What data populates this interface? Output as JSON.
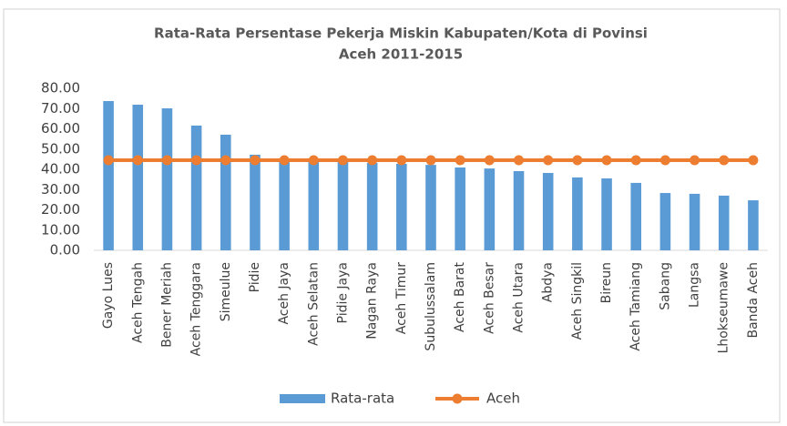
{
  "chart_data": {
    "type": "bar",
    "title": [
      "Rata-Rata Persentase Pekerja Miskin Kabupaten/Kota di Povinsi",
      "Aceh 2011-2015"
    ],
    "categories": [
      "Gayo Lues",
      "Aceh Tengah",
      "Bener Meriah",
      "Aceh Tenggara",
      "Simeulue",
      "Pidie",
      "Aceh Jaya",
      "Aceh Selatan",
      "Pidie Jaya",
      "Nagan Raya",
      "Aceh Timur",
      "Subulussalam",
      "Aceh Barat",
      "Aceh Besar",
      "Aceh Utara",
      "Abdya",
      "Aceh Singkil",
      "Bireun",
      "Aceh Tamiang",
      "Sabang",
      "Langsa",
      "Lhokseumawe",
      "Banda Aceh"
    ],
    "series": [
      {
        "name": "Rata-rata",
        "type": "bar",
        "color": "#5b9bd5",
        "values": [
          73.7,
          71.9,
          70.1,
          61.6,
          57.1,
          47.2,
          44.8,
          44.2,
          43.7,
          43.2,
          42.7,
          42.2,
          40.9,
          40.4,
          39.1,
          38.2,
          36.0,
          35.5,
          33.3,
          28.3,
          27.9,
          27.0,
          24.7
        ]
      },
      {
        "name": "Aceh",
        "type": "line",
        "color": "#ed7d31",
        "values": [
          44.5,
          44.5,
          44.5,
          44.5,
          44.5,
          44.5,
          44.5,
          44.5,
          44.5,
          44.5,
          44.5,
          44.5,
          44.5,
          44.5,
          44.5,
          44.5,
          44.5,
          44.5,
          44.5,
          44.5,
          44.5,
          44.5,
          44.5
        ]
      }
    ],
    "ylim": [
      0,
      80
    ],
    "yticks": [
      {
        "value": 0,
        "label": "0.00"
      },
      {
        "value": 10,
        "label": "10.00"
      },
      {
        "value": 20,
        "label": "20.00"
      },
      {
        "value": 30,
        "label": "30.00"
      },
      {
        "value": 40,
        "label": "40.00"
      },
      {
        "value": 50,
        "label": "50.00"
      },
      {
        "value": 60,
        "label": "60.00"
      },
      {
        "value": 70,
        "label": "70.00"
      },
      {
        "value": 80,
        "label": "80.00"
      }
    ],
    "grid": false,
    "legend": "bottom"
  }
}
